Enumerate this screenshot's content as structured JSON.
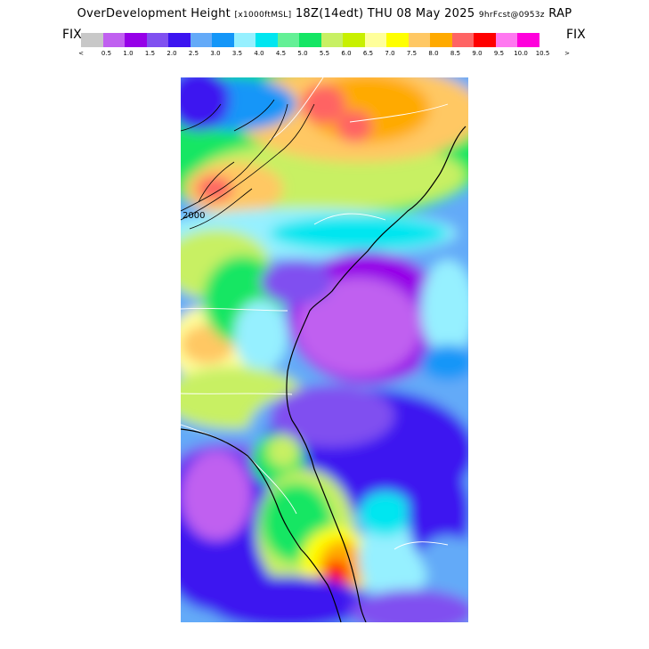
{
  "header": {
    "title_main": "OverDevelopment Height",
    "title_units": "[x1000ftMSL]",
    "title_time": "18Z(14edt) THU 08 May 2025",
    "title_fcst": "9hrFcst@0953z",
    "title_model": "RAP"
  },
  "legend": {
    "left_label": "FIX",
    "right_label": "FIX",
    "under_symbol": "<",
    "over_symbol": ">",
    "ticks": [
      "0.5",
      "1.0",
      "1.5",
      "2.0",
      "2.5",
      "3.0",
      "3.5",
      "4.0",
      "4.5",
      "5.0",
      "5.5",
      "6.0",
      "6.5",
      "7.0",
      "7.5",
      "8.0",
      "8.5",
      "9.0",
      "9.5",
      "10.0",
      "10.5"
    ],
    "colors": [
      "#c8c8c8",
      "#c060f0",
      "#9600e8",
      "#8050f0",
      "#3c14f0",
      "#64aaf8",
      "#1496f8",
      "#96f0ff",
      "#00e6f0",
      "#64f096",
      "#14e664",
      "#c8f064",
      "#c8f000",
      "#ffff9b",
      "#ffff00",
      "#ffc864",
      "#ffaa00",
      "#ff6464",
      "#ff0000",
      "#ff78f0",
      "#ff00dc"
    ]
  },
  "map": {
    "contour_label": "2000",
    "icon": "map-forecast-field"
  }
}
